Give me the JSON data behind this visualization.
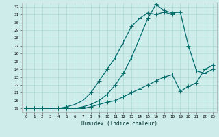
{
  "xlabel": "Humidex (Indice chaleur)",
  "bg_color": "#cdecea",
  "grid_color": "#add8d5",
  "line_color": "#006b6b",
  "xlim": [
    -0.5,
    23.5
  ],
  "ylim": [
    18.5,
    32.5
  ],
  "yticks": [
    19,
    20,
    21,
    22,
    23,
    24,
    25,
    26,
    27,
    28,
    29,
    30,
    31,
    32
  ],
  "xticks": [
    0,
    1,
    2,
    3,
    4,
    5,
    6,
    7,
    8,
    9,
    10,
    11,
    12,
    13,
    14,
    15,
    16,
    17,
    18,
    19,
    20,
    21,
    22,
    23
  ],
  "line1_x": [
    0,
    1,
    2,
    3,
    4,
    5,
    6,
    7,
    8,
    9,
    10,
    11,
    12,
    13,
    14,
    15,
    16,
    17,
    18
  ],
  "line1_y": [
    19.0,
    19.0,
    19.0,
    19.0,
    19.0,
    19.2,
    19.5,
    20.0,
    21.0,
    22.5,
    24.0,
    25.5,
    27.5,
    29.5,
    30.5,
    31.2,
    31.0,
    31.3,
    31.0
  ],
  "line2_x": [
    0,
    1,
    2,
    3,
    4,
    5,
    6,
    7,
    8,
    9,
    10,
    11,
    12,
    13,
    14,
    15,
    16,
    17,
    18,
    19,
    20,
    21,
    22,
    23
  ],
  "line2_y": [
    19.0,
    19.0,
    19.0,
    19.0,
    19.0,
    19.0,
    19.0,
    19.2,
    19.5,
    20.0,
    20.8,
    22.0,
    23.5,
    25.5,
    28.0,
    30.5,
    32.3,
    31.5,
    31.2,
    31.3,
    27.0,
    23.8,
    23.5,
    24.0
  ],
  "line3_x": [
    0,
    1,
    2,
    3,
    4,
    5,
    6,
    7,
    8,
    9,
    10,
    11,
    12,
    13,
    14,
    15,
    16,
    17,
    18,
    19,
    20,
    21,
    22,
    23
  ],
  "line3_y": [
    19.0,
    19.0,
    19.0,
    19.0,
    19.0,
    19.0,
    19.0,
    19.0,
    19.2,
    19.5,
    19.8,
    20.0,
    20.5,
    21.0,
    21.5,
    22.0,
    22.5,
    23.0,
    23.3,
    21.2,
    21.8,
    22.3,
    24.0,
    24.5
  ]
}
